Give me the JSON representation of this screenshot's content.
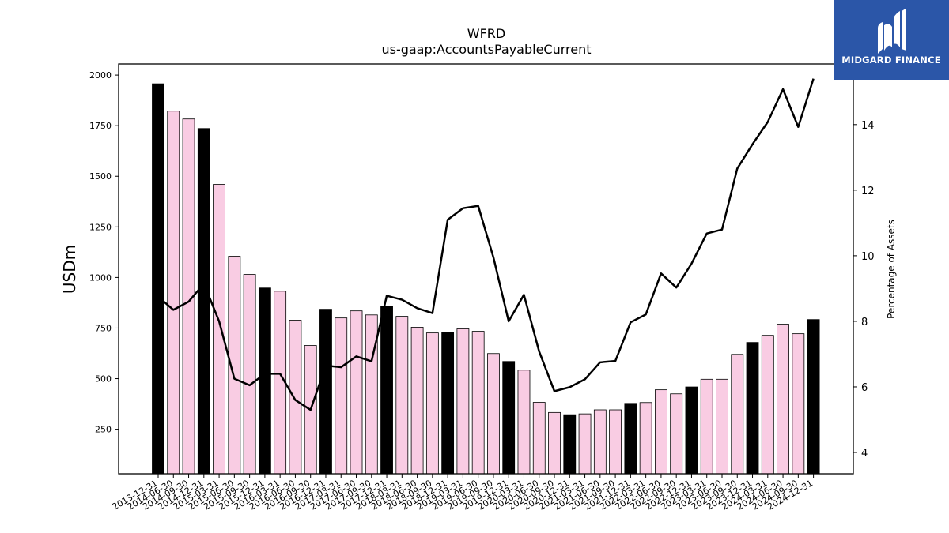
{
  "brand": {
    "name": "MIDGARD FINANCE",
    "logo_icon": "midgard-m-logo-icon",
    "background": "#2b56a8"
  },
  "chart_data": {
    "type": "bar",
    "title": "WFRD",
    "subtitle": "us-gaap:AccountsPayableCurrent",
    "ylabel": "USDm",
    "ylabel_right": "Percentage of Assets",
    "ylim": [
      30,
      2055
    ],
    "yticks": [
      250,
      500,
      750,
      1000,
      1250,
      1500,
      1750,
      2000
    ],
    "ylim_right": [
      3.35,
      15.85
    ],
    "yticks_right": [
      4,
      6,
      8,
      10,
      12,
      14
    ],
    "grid": false,
    "legend": "none",
    "colors": {
      "annual": "#000000",
      "quarterly": "#f9cce3",
      "line": "#000000"
    },
    "categories": [
      "2013-12-31",
      "2014-06-30",
      "2014-09-30",
      "2014-12-31",
      "2015-03-31",
      "2015-06-30",
      "2015-09-30",
      "2015-12-31",
      "2016-03-31",
      "2016-06-30",
      "2016-09-30",
      "2016-12-31",
      "2017-03-31",
      "2017-06-30",
      "2017-09-30",
      "2017-12-31",
      "2018-03-31",
      "2018-06-30",
      "2018-09-30",
      "2018-12-31",
      "2019-03-31",
      "2019-06-30",
      "2019-09-30",
      "2019-12-31",
      "2020-03-31",
      "2020-06-30",
      "2020-09-30",
      "2020-12-31",
      "2021-03-31",
      "2021-06-30",
      "2021-09-30",
      "2021-12-31",
      "2022-03-31",
      "2022-06-30",
      "2022-09-30",
      "2022-12-31",
      "2023-03-31",
      "2023-06-30",
      "2023-09-30",
      "2023-12-31",
      "2024-03-31",
      "2024-06-30",
      "2024-09-30",
      "2024-12-31"
    ],
    "series": [
      {
        "type": "bar",
        "values": [
          1957,
          1822,
          1783,
          1736,
          1460,
          1105,
          1015,
          948,
          932,
          789,
          664,
          843,
          800,
          835,
          815,
          856,
          808,
          754,
          726,
          729,
          746,
          734,
          624,
          585,
          542,
          383,
          333,
          322,
          326,
          346,
          346,
          378,
          382,
          445,
          425,
          459,
          497,
          497,
          620,
          679,
          714,
          769,
          722,
          792
        ],
        "annual": [
          true,
          false,
          false,
          true,
          false,
          false,
          false,
          true,
          false,
          false,
          false,
          true,
          false,
          false,
          false,
          true,
          false,
          false,
          false,
          true,
          false,
          false,
          false,
          true,
          false,
          false,
          false,
          true,
          false,
          false,
          false,
          true,
          false,
          false,
          false,
          true,
          false,
          false,
          false,
          true,
          false,
          false,
          false,
          true
        ]
      },
      {
        "type": "line",
        "axis": "right",
        "values": [
          8.75,
          8.35,
          8.6,
          9.15,
          8.0,
          6.25,
          6.05,
          6.4,
          6.4,
          5.6,
          5.3,
          6.65,
          6.6,
          6.93,
          6.78,
          8.78,
          8.66,
          8.4,
          8.25,
          11.1,
          11.45,
          11.52,
          9.95,
          8.0,
          8.81,
          7.08,
          5.87,
          5.99,
          6.23,
          6.75,
          6.79,
          7.97,
          8.21,
          9.46,
          9.03,
          9.76,
          10.68,
          10.8,
          12.66,
          13.4,
          14.08,
          15.08,
          13.93,
          15.4
        ]
      }
    ]
  }
}
